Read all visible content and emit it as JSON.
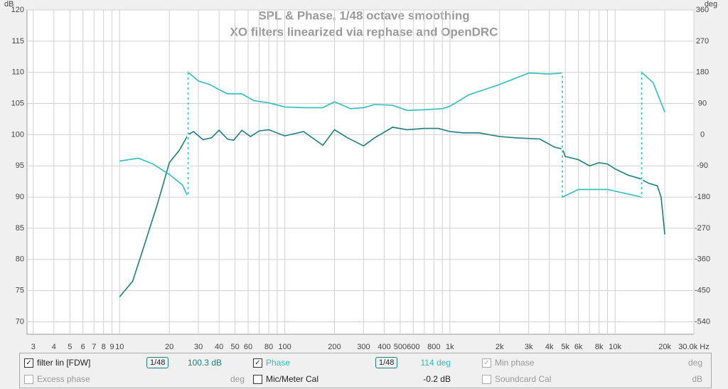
{
  "chart_data": {
    "type": "line",
    "title": [
      "SPL & Phase, 1/48 octave smoothing",
      "XO filters linearized via rephase and OpenDRC"
    ],
    "ylabel": "dB",
    "y2label": "deg",
    "log_x": true,
    "grid": true,
    "xlim": [
      2.75,
      30000
    ],
    "ylim": [
      68,
      120
    ],
    "y2lim": [
      -576,
      360
    ],
    "xticks": [
      3,
      4,
      5,
      6,
      7,
      8,
      9,
      10,
      20,
      30,
      40,
      50,
      60,
      80,
      100,
      200,
      300,
      400,
      500,
      600,
      800,
      {
        "value": 1000,
        "label": "1k"
      },
      {
        "value": 2000,
        "label": "2k"
      },
      {
        "value": 3000,
        "label": "3k"
      },
      {
        "value": 4000,
        "label": "4k"
      },
      {
        "value": 5000,
        "label": "5k"
      },
      {
        "value": 6000,
        "label": "6k"
      },
      {
        "value": 8000,
        "label": "8k"
      },
      {
        "value": 10000,
        "label": "10k"
      },
      {
        "value": 20000,
        "label": "20k"
      },
      {
        "value": 30000,
        "label": "30.0k Hz"
      }
    ],
    "xminor": [
      70,
      90,
      700,
      900,
      7000,
      9000
    ],
    "yticks": [
      120,
      115,
      110,
      105,
      100,
      95,
      90,
      85,
      80,
      75,
      70
    ],
    "y2ticks": [
      360,
      270,
      180,
      90,
      0,
      -90,
      -180,
      -270,
      -360,
      -450,
      -540
    ],
    "series": [
      {
        "name": "filter lin [FDW]",
        "color": "#1a7f80",
        "x": [
          10,
          12,
          14,
          17,
          20,
          23,
          26,
          28,
          32,
          36,
          40,
          45,
          49,
          55,
          62,
          70,
          80,
          100,
          130,
          170,
          200,
          240,
          300,
          350,
          450,
          550,
          700,
          850,
          1000,
          1200,
          1500,
          2000,
          2500,
          3500,
          4300,
          4800,
          5000,
          6000,
          7000,
          8000,
          9000,
          10000,
          12000,
          14000,
          16000,
          18000,
          19000,
          20000
        ],
        "values": [
          74,
          76.5,
          82,
          89,
          95.5,
          97.5,
          100,
          100.5,
          99.2,
          99.5,
          100.7,
          99.3,
          99.1,
          100.7,
          99.7,
          100.6,
          100.8,
          99.8,
          100.5,
          98.3,
          100.8,
          99.5,
          98.2,
          99.5,
          101.2,
          100.8,
          101,
          101,
          100.5,
          100.3,
          100.3,
          99.7,
          99.5,
          99.3,
          98,
          97.7,
          96.5,
          96,
          95,
          95.5,
          95.3,
          94.5,
          93.5,
          93,
          92.2,
          91.8,
          90,
          84
        ]
      },
      {
        "name": "Phase",
        "color": "#2cbfbf",
        "axis": "y2",
        "x": [
          10,
          13,
          16,
          20,
          24,
          26,
          26,
          30,
          35,
          40,
          45,
          55,
          65,
          80,
          100,
          130,
          170,
          200,
          250,
          300,
          350,
          450,
          550,
          700,
          900,
          1000,
          1300,
          2000,
          3000,
          4000,
          4800,
          4800,
          6000,
          9000,
          14500,
          14500,
          17000,
          20000
        ],
        "values": [
          -76,
          -68,
          -85,
          -115,
          -145,
          -180,
          180,
          155,
          145,
          130,
          118,
          118,
          98,
          92,
          80,
          78,
          78,
          95,
          75,
          78,
          87,
          85,
          70,
          72,
          75,
          82,
          115,
          145,
          178,
          175,
          178,
          -180,
          -158,
          -158,
          -180,
          180,
          150,
          65
        ]
      }
    ]
  },
  "legend_panel": {
    "rows": [
      [
        {
          "label": "filter lin [FDW]",
          "checked": true,
          "smoothing": "1/48",
          "readout": "100.3 dB"
        },
        {
          "label": "Phase",
          "checked": true,
          "smoothing": "1/48",
          "readout": "114 deg"
        },
        {
          "label": "Min phase",
          "checked": true,
          "disabled": true,
          "unit": "deg"
        }
      ],
      [
        {
          "label": "Excess phase",
          "checked": false,
          "disabled": true,
          "unit": "deg"
        },
        {
          "label": "Mic/Meter Cal",
          "checked": false,
          "readout": "-0.2 dB"
        },
        {
          "label": "Soundcard Cal",
          "checked": false,
          "disabled": true,
          "unit": "dB"
        }
      ]
    ]
  }
}
